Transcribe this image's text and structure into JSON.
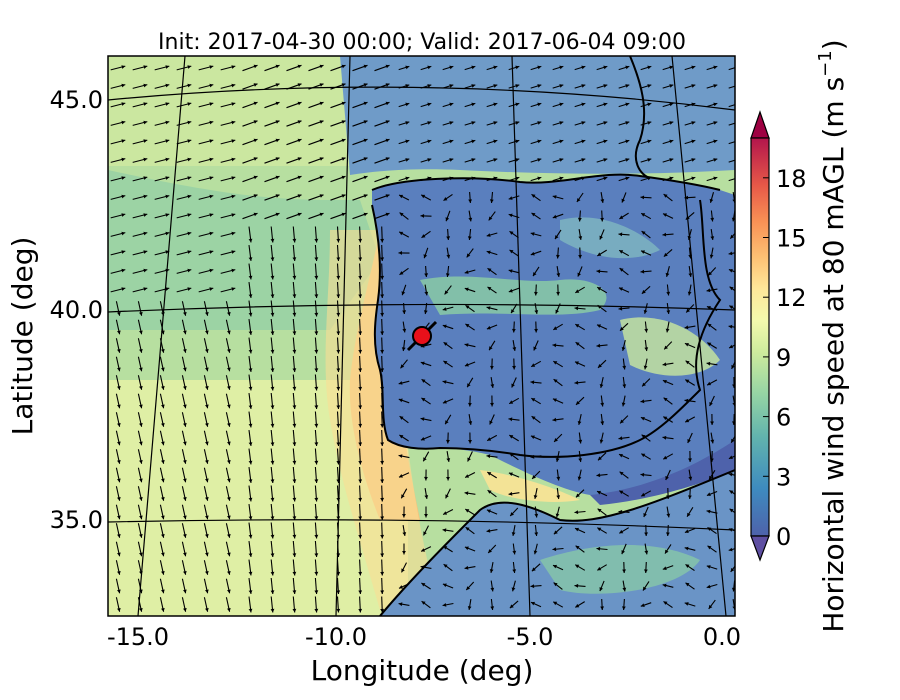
{
  "title": "Init: 2017-04-30 00:00; Valid: 2017-06-04 09:00",
  "xaxis": {
    "label": "Longitude (deg)",
    "ticks": [
      "-15.0",
      "-10.0",
      "-5.0",
      "0.0"
    ]
  },
  "yaxis": {
    "label": "Latitude (deg)",
    "ticks": [
      "45.0",
      "40.0",
      "35.0"
    ]
  },
  "colorbar": {
    "label": "Horizontal wind speed at 80 mAGL (m s",
    "label_sup": "−1",
    "label_end": ")",
    "ticks": [
      "0",
      "3",
      "6",
      "9",
      "12",
      "15",
      "18"
    ],
    "range": [
      0,
      20
    ],
    "extend": "both"
  },
  "colors": {
    "land_low": "#5a7fbe",
    "sea_mid": "#8ccfa4",
    "jet_core": "#f6c27e",
    "marker": "#e8101a"
  },
  "chart_data": {
    "type": "map",
    "field": "horizontal wind speed at 80 mAGL",
    "units": "m s-1",
    "lon_range": [
      -16,
      0.3
    ],
    "lat_range": [
      32.5,
      46
    ],
    "colorbar_range": [
      0,
      20
    ],
    "graticule_lon": [
      -15,
      -10,
      -5,
      0
    ],
    "graticule_lat": [
      35,
      40,
      45
    ],
    "marker": {
      "lon": -7.6,
      "lat": 39.3
    }
  }
}
